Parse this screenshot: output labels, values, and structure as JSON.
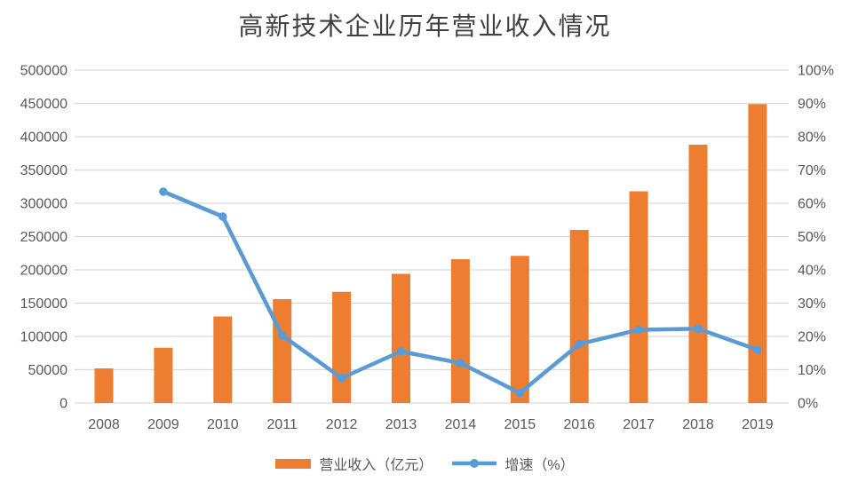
{
  "title": "高新技术企业历年营业收入情况",
  "colors": {
    "bar": "#ED7D31",
    "line": "#5B9BD5",
    "gridline": "#D9D9D9",
    "axis_text": "#595959",
    "title_text": "#404040",
    "background": "#FFFFFF"
  },
  "chart_data": {
    "type": "bar",
    "subtype": "combo-bar-line-dual-axis",
    "title": "高新技术企业历年营业收入情况",
    "categories": [
      "2008",
      "2009",
      "2010",
      "2011",
      "2012",
      "2013",
      "2014",
      "2015",
      "2016",
      "2017",
      "2018",
      "2019"
    ],
    "series": [
      {
        "name": "营业收入（亿元）",
        "type": "bar",
        "axis": "left",
        "color": "#ED7D31",
        "values": [
          52000,
          83000,
          130000,
          156000,
          167000,
          194000,
          216000,
          221000,
          260000,
          318000,
          388000,
          449000
        ]
      },
      {
        "name": "增速（%）",
        "type": "line",
        "axis": "right",
        "color": "#5B9BD5",
        "marker": "circle",
        "values": [
          null,
          63.5,
          56.0,
          20.3,
          7.5,
          15.5,
          12.0,
          3.0,
          17.7,
          22.0,
          22.3,
          16.0
        ]
      }
    ],
    "left_axis": {
      "min": 0,
      "max": 500000,
      "step": 50000,
      "ticks": [
        "0",
        "50000",
        "100000",
        "150000",
        "200000",
        "250000",
        "300000",
        "350000",
        "400000",
        "450000",
        "500000"
      ]
    },
    "right_axis": {
      "min": 0,
      "max": 100,
      "step": 10,
      "ticks": [
        "0%",
        "10%",
        "20%",
        "30%",
        "40%",
        "50%",
        "60%",
        "70%",
        "80%",
        "90%",
        "100%"
      ]
    },
    "grid": true,
    "legend_position": "bottom",
    "legend": [
      "营业收入（亿元）",
      "增速（%）"
    ]
  }
}
